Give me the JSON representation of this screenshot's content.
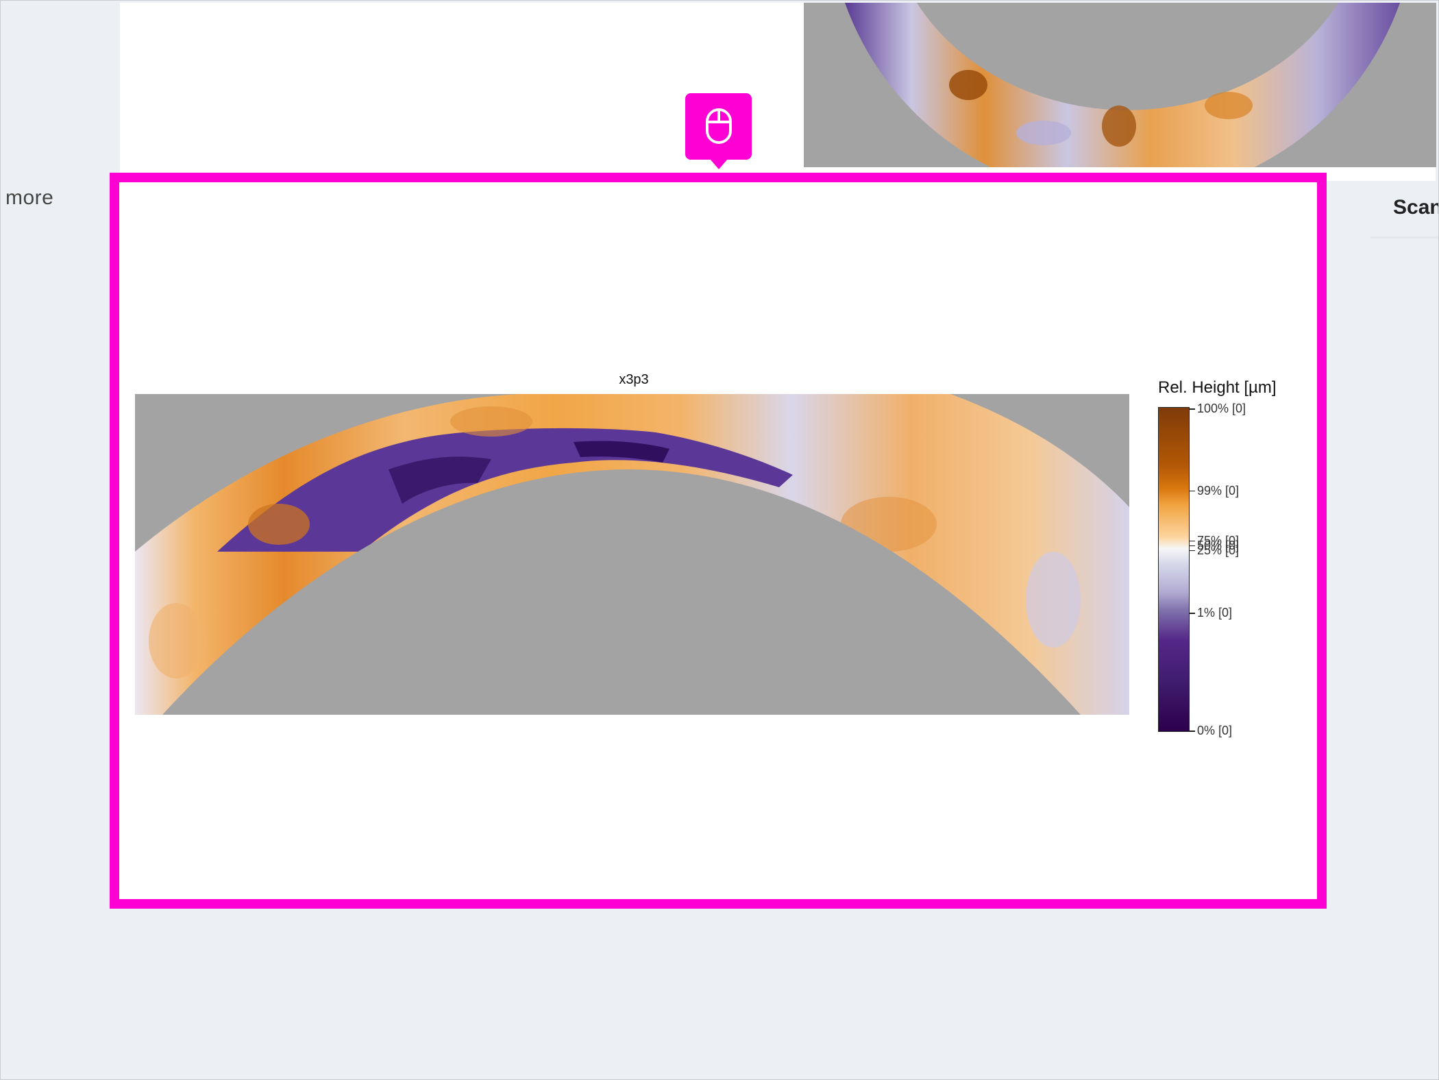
{
  "sidebar": {
    "more_label": "more"
  },
  "right_panel": {
    "scan_label": "Scan"
  },
  "plot": {
    "title": "x3p3",
    "legend_title": "Rel. Height [µm]",
    "legend_ticks": [
      {
        "label": "100% [0]",
        "fraction": 0.0
      },
      {
        "label": "99% [0]",
        "fraction": 0.255
      },
      {
        "label": "75% [0]",
        "fraction": 0.41
      },
      {
        "label": "50% [0]",
        "fraction": 0.425
      },
      {
        "label": "25% [0]",
        "fraction": 0.44
      },
      {
        "label": "1% [0]",
        "fraction": 0.635
      },
      {
        "label": "0% [0]",
        "fraction": 1.0
      }
    ]
  },
  "colors": {
    "highlight": "#ff00d4",
    "background": "#eceff3",
    "mask_gray": "#a3a3a3"
  },
  "icons": {
    "cursor_badge": "mouse-icon"
  }
}
